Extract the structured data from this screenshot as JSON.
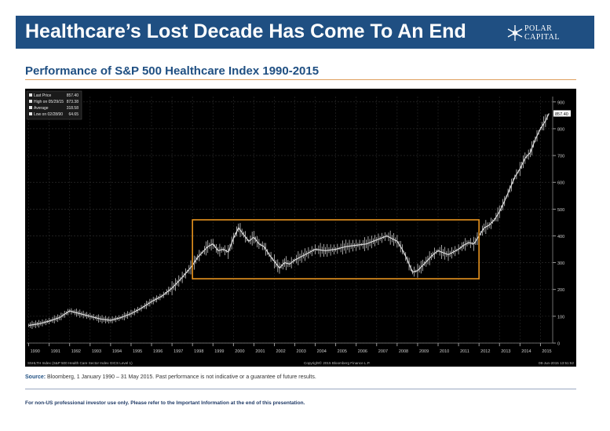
{
  "header": {
    "title": "Healthcare’s Lost Decade Has Come To An End"
  },
  "logo": {
    "line1": "POLAR",
    "line2": "CAPITAL",
    "icon": "snowflake-icon"
  },
  "subtitle": "Performance of S&P 500 Healthcare Index 1990-2015",
  "colors": {
    "brand": "#1f4f82",
    "accent": "#e8941f",
    "chart_bg": "#000000",
    "series": "#d9d9d9"
  },
  "chart_data": {
    "type": "line",
    "legend": [
      {
        "label": "Last Price",
        "value": "857.40"
      },
      {
        "label": "High on 05/29/15",
        "value": "873.38"
      },
      {
        "label": "Average",
        "value": "318.58"
      },
      {
        "label": "Low on 02/28/90",
        "value": "64.65"
      }
    ],
    "legend_position": "top-left",
    "x": [
      1990,
      1990.5,
      1991,
      1991.5,
      1992,
      1992.5,
      1993,
      1993.5,
      1994,
      1994.5,
      1995,
      1995.5,
      1996,
      1996.5,
      1997,
      1997.5,
      1998,
      1998.25,
      1998.5,
      1998.75,
      1999,
      1999.25,
      1999.5,
      1999.75,
      2000,
      2000.25,
      2000.5,
      2000.75,
      2001,
      2001.25,
      2001.5,
      2001.75,
      2002,
      2002.25,
      2002.5,
      2002.75,
      2003,
      2003.5,
      2004,
      2004.5,
      2005,
      2005.5,
      2006,
      2006.5,
      2007,
      2007.5,
      2008,
      2008.25,
      2008.5,
      2008.75,
      2009,
      2009.25,
      2009.5,
      2009.75,
      2010,
      2010.5,
      2011,
      2011.25,
      2011.5,
      2011.75,
      2012,
      2012.25,
      2012.5,
      2012.75,
      2013,
      2013.25,
      2013.5,
      2013.75,
      2014,
      2014.25,
      2014.5,
      2014.75,
      2015,
      2015.25,
      2015.42
    ],
    "values": [
      66,
      72,
      82,
      95,
      120,
      110,
      100,
      90,
      85,
      95,
      110,
      130,
      155,
      175,
      205,
      245,
      290,
      320,
      340,
      360,
      370,
      345,
      350,
      340,
      390,
      430,
      405,
      380,
      395,
      370,
      360,
      330,
      305,
      280,
      300,
      295,
      310,
      330,
      350,
      345,
      350,
      360,
      365,
      370,
      385,
      400,
      380,
      350,
      310,
      265,
      270,
      290,
      310,
      330,
      345,
      330,
      350,
      365,
      375,
      370,
      400,
      430,
      440,
      460,
      490,
      530,
      575,
      620,
      650,
      690,
      710,
      760,
      800,
      830,
      857
    ],
    "last_price_label": "857.40",
    "x_tick_labels": [
      "1990",
      "1991",
      "1992",
      "1993",
      "1994",
      "1995",
      "1996",
      "1997",
      "1998",
      "1999",
      "2000",
      "2001",
      "2002",
      "2003",
      "2004",
      "2005",
      "2006",
      "2007",
      "2008",
      "2009",
      "2010",
      "2011",
      "2012",
      "2013",
      "2014",
      "2015"
    ],
    "y_ticks": [
      0,
      100,
      200,
      300,
      400,
      500,
      600,
      700,
      800,
      900
    ],
    "ylim": [
      0,
      920
    ],
    "xlim": [
      1989.9,
      2015.6
    ],
    "highlight_box": {
      "x_start": 1998,
      "x_end": 2012,
      "y_low": 240,
      "y_high": 460
    },
    "bottom_left_text": "S5HLTH Index (S&P 500 Health Care Sector Index GICS Level 1)",
    "bottom_center_text": "Copyright© 2015 Bloomberg Finance L.P.",
    "bottom_right_text": "08-Jun-2015 13:51:52"
  },
  "source": {
    "label": "Source:",
    "text": "Bloomberg, 1 January 1990 – 31 May 2015. Past performance is not indicative or a guarantee of future results."
  },
  "footer": "For non-US professional investor use only. Please refer to the Important Information at the end of this presentation."
}
